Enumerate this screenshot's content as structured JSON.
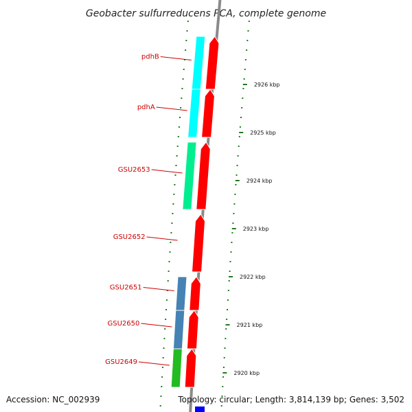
{
  "title": "Geobacter sulfurreducens PCA, complete genome",
  "footer": {
    "accession": "Accession: NC_002939",
    "topology": "Topology: circular; Length: 3,814,139 bp; Genes: 3,502"
  },
  "colors": {
    "cds_forward": "#ff0000",
    "backbone": "#8a8a8a",
    "tick": "#1e7a1e",
    "label": "#cc0000",
    "cog_cyan": "#00ffff",
    "cog_teal": "#00ee90",
    "cog_steelblue": "#4682b4",
    "cog_green": "#22bb22",
    "cog_blue": "#0000ff"
  },
  "genes": [
    {
      "name": "pdhB",
      "start_kbp": 2925.9,
      "end_kbp": 2927.0,
      "strand": "forward",
      "cog_color": "#00ffff"
    },
    {
      "name": "pdhA",
      "start_kbp": 2924.9,
      "end_kbp": 2925.9,
      "strand": "forward",
      "cog_color": "#00ffff"
    },
    {
      "name": "GSU2653",
      "start_kbp": 2923.4,
      "end_kbp": 2924.8,
      "strand": "forward",
      "cog_color": "#00ee90"
    },
    {
      "name": "GSU2652",
      "start_kbp": 2922.1,
      "end_kbp": 2923.3,
      "strand": "forward",
      "cog_color": null
    },
    {
      "name": "GSU2651",
      "start_kbp": 2921.3,
      "end_kbp": 2922.0,
      "strand": "forward",
      "cog_color": "#4682b4"
    },
    {
      "name": "GSU2650",
      "start_kbp": 2920.5,
      "end_kbp": 2921.3,
      "strand": "forward",
      "cog_color": "#4682b4"
    },
    {
      "name": "GSU2649",
      "start_kbp": 2919.7,
      "end_kbp": 2920.5,
      "strand": "forward",
      "cog_color": "#22bb22"
    }
  ],
  "ticks": [
    {
      "kbp": 2926,
      "label": "2926 kbp"
    },
    {
      "kbp": 2925,
      "label": "2925 kbp"
    },
    {
      "kbp": 2924,
      "label": "2924 kbp"
    },
    {
      "kbp": 2923,
      "label": "2923 kbp"
    },
    {
      "kbp": 2922,
      "label": "2922 kbp"
    },
    {
      "kbp": 2921,
      "label": "2921 kbp"
    },
    {
      "kbp": 2920,
      "label": "2920 kbp"
    }
  ]
}
